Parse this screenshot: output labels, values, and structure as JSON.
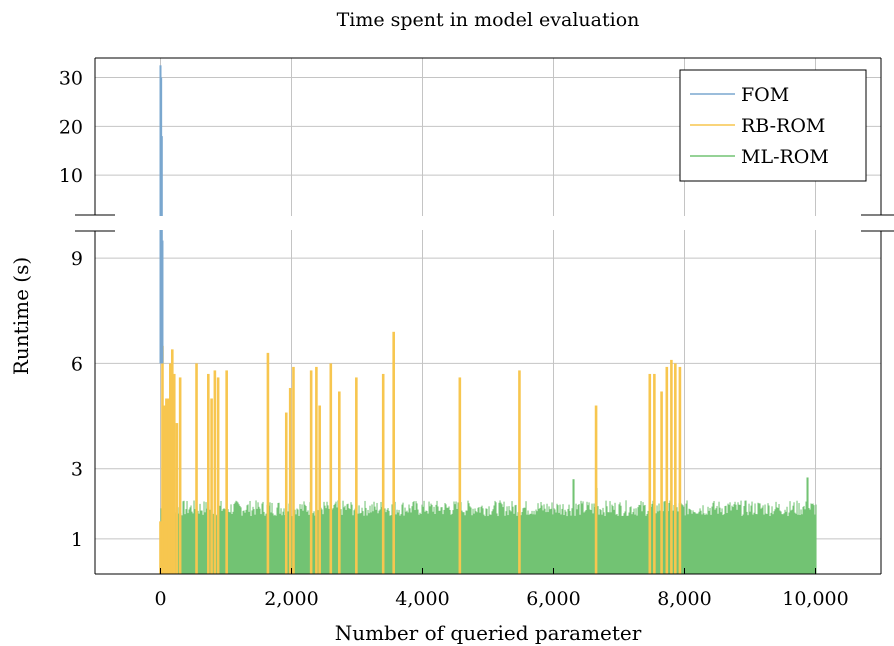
{
  "chart_data": {
    "type": "bar",
    "title": "Time spent in model evaluation",
    "xlabel": "Number of queried parameter",
    "ylabel": "Runtime (s)",
    "xlim": [
      -1000,
      11000
    ],
    "x_ticks": [
      0,
      2000,
      4000,
      6000,
      8000,
      10000
    ],
    "x_tick_labels": [
      "0",
      "2,000",
      "4,000",
      "6,000",
      "8,000",
      "10,000"
    ],
    "y_axis_broken": true,
    "y_lower_range": [
      0,
      10
    ],
    "y_upper_range": [
      0,
      34
    ],
    "y_lower_ticks": [
      1,
      3,
      6,
      9
    ],
    "y_upper_ticks": [
      10,
      20,
      30
    ],
    "grid": true,
    "legend_position": "top-right",
    "colors": {
      "FOM": "#7aa7cf",
      "RB-ROM": "#f7c64f",
      "ML-ROM": "#72c373"
    },
    "series": [
      {
        "name": "FOM",
        "x": [
          0,
          10,
          20,
          30,
          40
        ],
        "values": [
          32.5,
          30.0,
          18.0,
          9.5,
          6.0
        ]
      },
      {
        "name": "RB-ROM",
        "x": [
          0,
          30,
          60,
          90,
          120,
          150,
          180,
          210,
          250,
          300,
          550,
          730,
          780,
          830,
          880,
          1010,
          1640,
          1920,
          1980,
          2030,
          2300,
          2380,
          2430,
          2600,
          2730,
          2990,
          3400,
          3560,
          4570,
          5480,
          6650,
          7470,
          7540,
          7650,
          7730,
          7800,
          7860,
          7930
        ],
        "values": [
          1.5,
          6.5,
          4.8,
          5.0,
          5.0,
          6.0,
          6.4,
          5.7,
          4.3,
          5.6,
          6.0,
          5.7,
          5.0,
          5.8,
          5.6,
          5.8,
          6.3,
          4.6,
          5.3,
          5.9,
          5.8,
          5.9,
          4.8,
          6.0,
          5.2,
          5.6,
          5.7,
          6.9,
          5.6,
          5.8,
          4.8,
          5.7,
          5.7,
          5.2,
          5.9,
          6.1,
          6.0,
          5.9
        ]
      },
      {
        "name": "ML-ROM",
        "x_range": [
          0,
          10000
        ],
        "typical_value": 1.85,
        "min_value": 1.65,
        "max_value": 2.1,
        "peaks": {
          "x": [
            6300,
            6650,
            9870
          ],
          "values": [
            2.7,
            2.45,
            2.75
          ]
        }
      }
    ]
  }
}
